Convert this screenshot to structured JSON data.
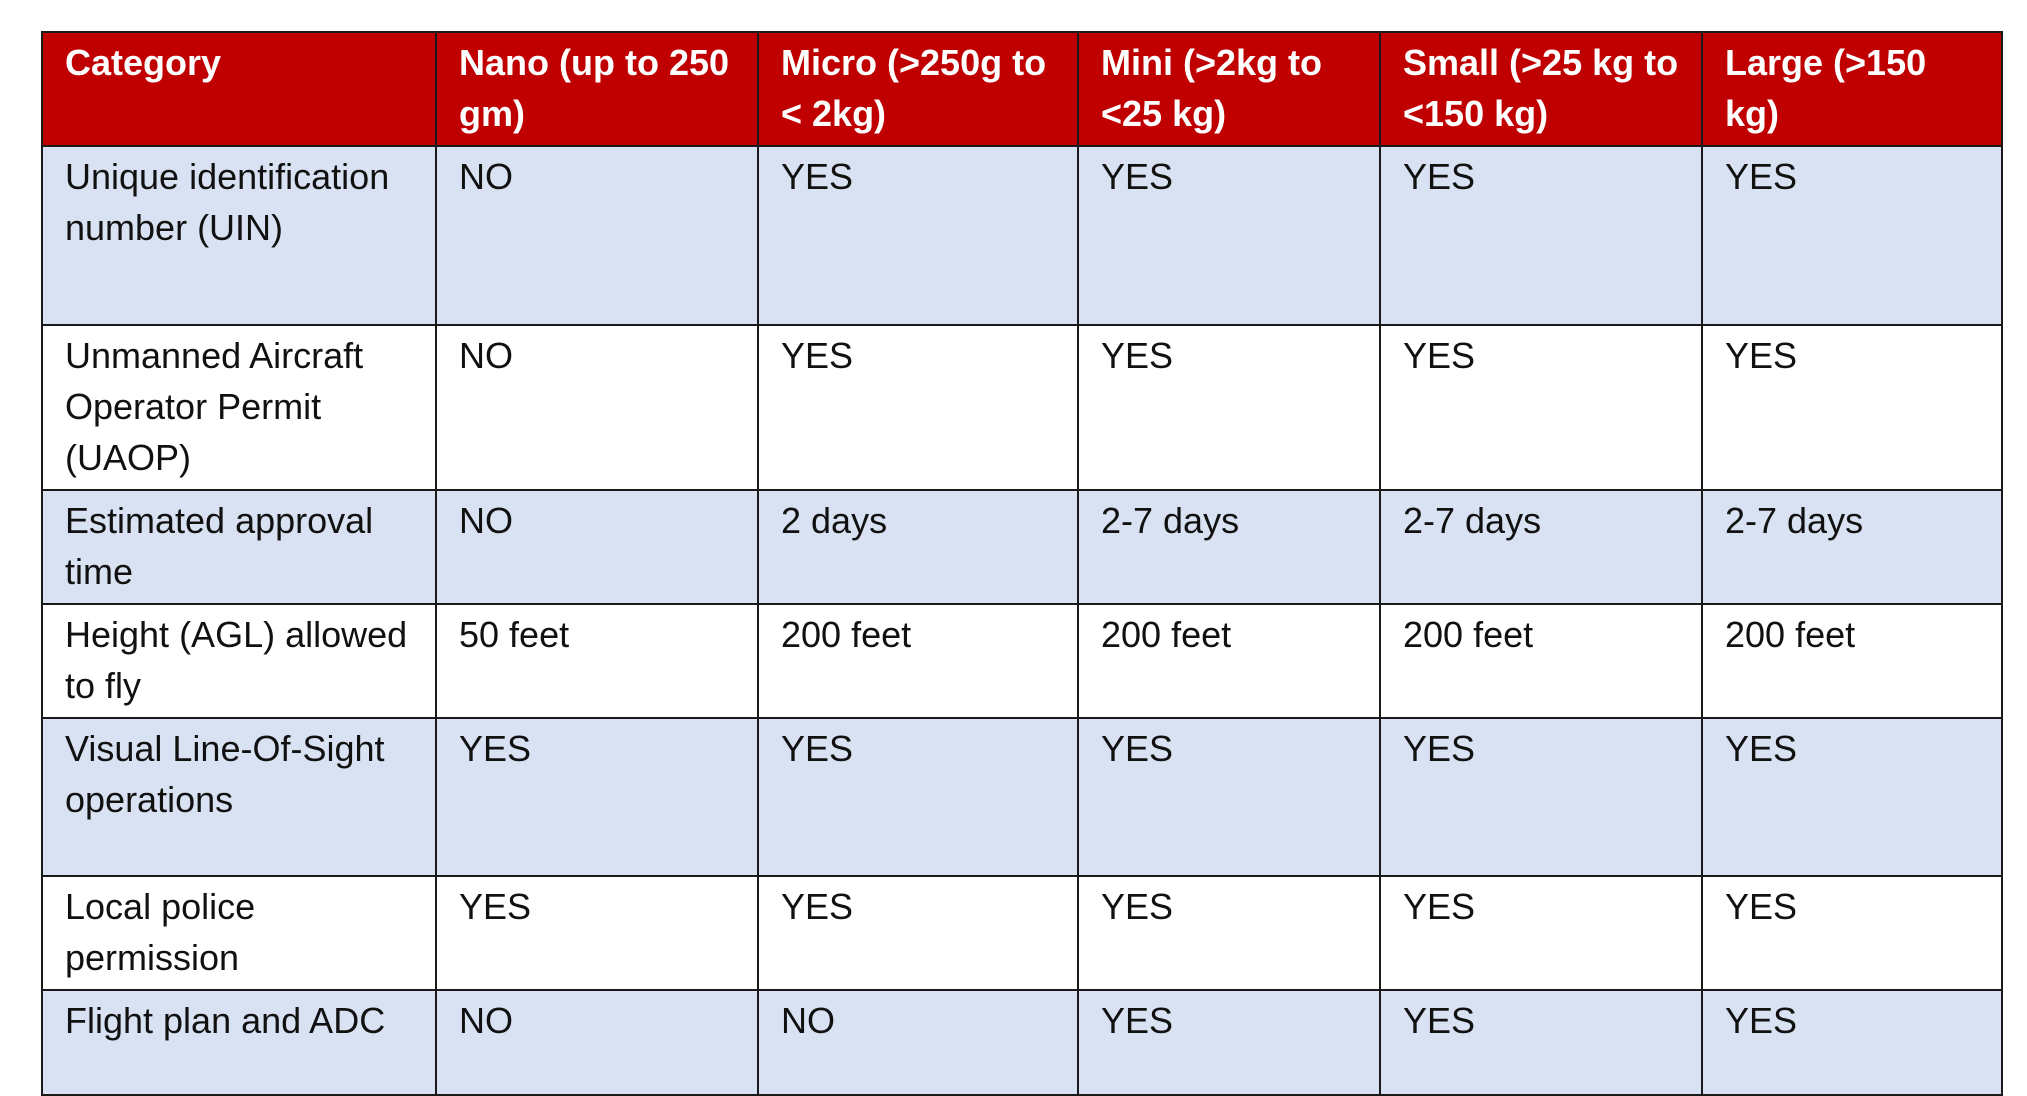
{
  "table": {
    "headers": [
      "Category",
      "Nano (up to 250 gm)",
      "Micro (>250g to < 2kg)",
      "Mini (>2kg to <25 kg)",
      "Small (>25 kg to <150 kg)",
      "Large (>150 kg)"
    ],
    "rows": [
      [
        "Unique identification number (UIN)",
        "NO",
        "YES",
        "YES",
        "YES",
        "YES"
      ],
      [
        "Unmanned Aircraft Operator Permit (UAOP)",
        "NO",
        "YES",
        "YES",
        "YES",
        "YES"
      ],
      [
        "Estimated approval time",
        "NO",
        "2 days",
        "2-7 days",
        "2-7 days",
        "2-7 days"
      ],
      [
        "Height (AGL) allowed to fly",
        "50 feet",
        "200 feet",
        "200 feet",
        "200 feet",
        "200 feet"
      ],
      [
        "Visual Line-Of-Sight operations",
        "YES",
        "YES",
        "YES",
        "YES",
        "YES"
      ],
      [
        "Local police permission",
        "YES",
        "YES",
        "YES",
        "YES",
        "YES"
      ],
      [
        "Flight plan and ADC",
        "NO",
        "NO",
        "YES",
        "YES",
        "YES"
      ]
    ]
  },
  "colors": {
    "header_bg": "#c00000",
    "header_text": "#ffffff",
    "shaded_row_bg": "#d9e2f3",
    "plain_row_bg": "#ffffff",
    "border": "#1a1a1a"
  }
}
